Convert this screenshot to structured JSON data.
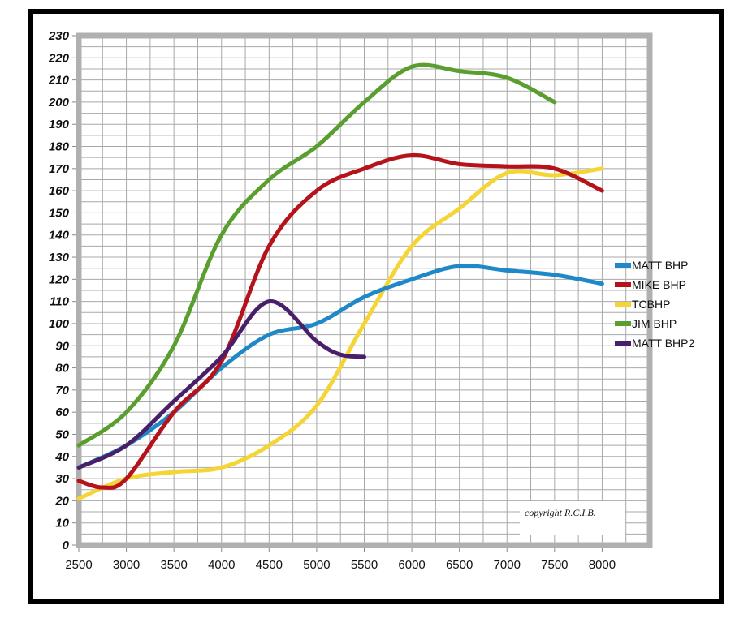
{
  "chart_data": {
    "type": "line",
    "title": "",
    "xlabel": "",
    "ylabel": "",
    "xlim": [
      2500,
      8500
    ],
    "ylim": [
      0,
      230
    ],
    "x_ticks": [
      2500,
      3000,
      3500,
      4000,
      4500,
      5000,
      5500,
      6000,
      6500,
      7000,
      7500,
      8000
    ],
    "y_ticks": [
      0,
      10,
      20,
      30,
      40,
      50,
      60,
      70,
      80,
      90,
      100,
      110,
      120,
      130,
      140,
      150,
      160,
      170,
      180,
      190,
      200,
      210,
      220,
      230
    ],
    "grid": true,
    "legend_position": "right",
    "series": [
      {
        "name": "MATT BHP",
        "color": "#1f88c8",
        "x": [
          2500,
          3000,
          3500,
          4000,
          4500,
          5000,
          5500,
          6000,
          6500,
          7000,
          7500,
          8000
        ],
        "values": [
          35,
          45,
          60,
          80,
          95,
          100,
          112,
          120,
          126,
          124,
          122,
          118
        ]
      },
      {
        "name": "MIKE BHP",
        "color": "#b5121b",
        "x": [
          2500,
          2750,
          3000,
          3500,
          4000,
          4500,
          5000,
          5500,
          6000,
          6500,
          7000,
          7500,
          8000
        ],
        "values": [
          29,
          26,
          30,
          60,
          83,
          135,
          160,
          170,
          176,
          172,
          171,
          170,
          160
        ]
      },
      {
        "name": "TCBHP",
        "color": "#f5d536",
        "x": [
          2500,
          3000,
          3500,
          4000,
          4500,
          5000,
          5500,
          6000,
          6500,
          7000,
          7500,
          8000
        ],
        "values": [
          21,
          30,
          33,
          35,
          45,
          63,
          100,
          135,
          152,
          168,
          167,
          170
        ]
      },
      {
        "name": "JIM BHP",
        "color": "#5a9e2f",
        "x": [
          2500,
          3000,
          3500,
          4000,
          4500,
          5000,
          5500,
          6000,
          6500,
          7000,
          7500
        ],
        "values": [
          45,
          60,
          90,
          140,
          165,
          180,
          200,
          216,
          214,
          211,
          200
        ]
      },
      {
        "name": "MATT BHP2",
        "color": "#4a1f6a",
        "x": [
          2500,
          3000,
          3500,
          4000,
          4500,
          5000,
          5250,
          5500
        ],
        "values": [
          35,
          45,
          65,
          85,
          110,
          92,
          86,
          85
        ]
      }
    ],
    "annotation": "copyright R.C.I.B."
  }
}
